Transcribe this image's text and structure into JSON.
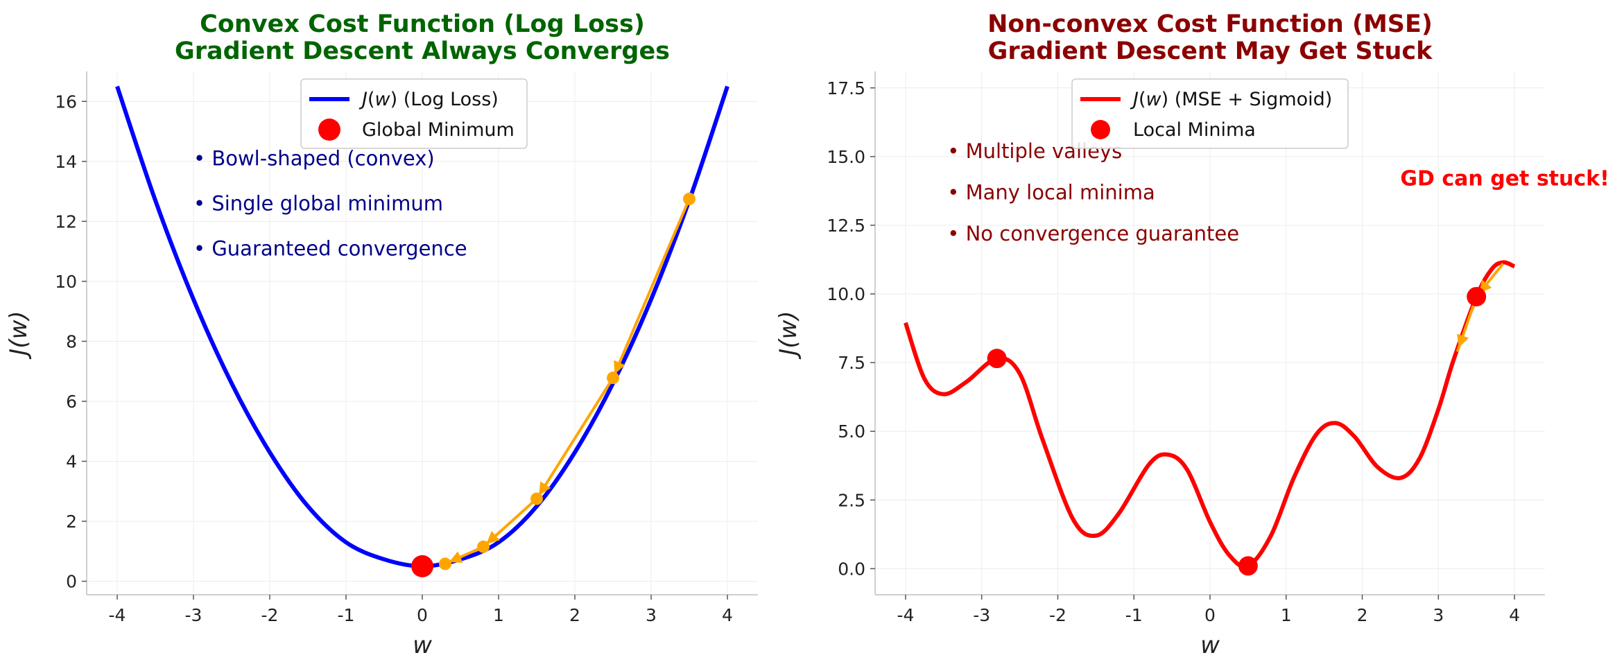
{
  "chart_data": [
    {
      "type": "line",
      "title": "Convex Cost Function (Log Loss)\nGradient Descent Always Converges",
      "title_color": "#006400",
      "xlabel": "w",
      "ylabel": "J(w)",
      "xlim": [
        -4.4,
        4.4
      ],
      "ylim": [
        -0.45,
        17.0
      ],
      "xticks": [
        -4,
        -3,
        -2,
        -1,
        0,
        1,
        2,
        3,
        4
      ],
      "yticks": [
        0,
        2,
        4,
        6,
        8,
        10,
        12,
        14,
        16
      ],
      "grid": true,
      "legend_placement": "top-center",
      "series": [
        {
          "name": "J(w) (Log Loss)",
          "color": "#0000ff",
          "x": [
            -4.0,
            -3.5,
            -3.0,
            -2.5,
            -2.0,
            -1.5,
            -1.0,
            -0.5,
            0.0,
            0.5,
            1.0,
            1.5,
            2.0,
            2.5,
            3.0,
            3.5,
            4.0
          ],
          "y": [
            16.5,
            12.7,
            9.4,
            6.6,
            4.3,
            2.5,
            1.3,
            0.73,
            0.5,
            0.73,
            1.3,
            2.5,
            4.3,
            6.6,
            9.4,
            12.7,
            16.5
          ]
        }
      ],
      "markers": [
        {
          "name": "Global Minimum",
          "color": "#ff0000",
          "points": [
            [
              0.0,
              0.5
            ]
          ]
        }
      ],
      "gd_path": {
        "color": "#ffa500",
        "points": [
          [
            3.5,
            12.75
          ],
          [
            2.5,
            6.78
          ],
          [
            1.5,
            2.75
          ],
          [
            0.8,
            1.15
          ],
          [
            0.3,
            0.58
          ]
        ]
      },
      "annotations": [
        {
          "text": "• Bowl-shaped (convex)",
          "x": -3.0,
          "y": 14.1,
          "color": "#00008b"
        },
        {
          "text": "• Single global minimum",
          "x": -3.0,
          "y": 12.6,
          "color": "#00008b"
        },
        {
          "text": "• Guaranteed convergence",
          "x": -3.0,
          "y": 11.1,
          "color": "#00008b"
        }
      ],
      "legend": [
        {
          "label_prefix": "J",
          "label_var": "w",
          "label_suffix": " (Log Loss)",
          "kind": "line",
          "color": "#0000ff"
        },
        {
          "label": "Global Minimum",
          "kind": "marker",
          "color": "#ff0000"
        }
      ]
    },
    {
      "type": "line",
      "title": "Non-convex Cost Function (MSE)\nGradient Descent May Get Stuck",
      "title_color": "#8b0000",
      "xlabel": "w",
      "ylabel": "J(w)",
      "xlim": [
        -4.4,
        4.4
      ],
      "ylim": [
        -0.95,
        18.1
      ],
      "xticks": [
        -4,
        -3,
        -2,
        -1,
        0,
        1,
        2,
        3,
        4
      ],
      "yticks": [
        0.0,
        2.5,
        5.0,
        7.5,
        10.0,
        12.5,
        15.0,
        17.5
      ],
      "grid": true,
      "legend_placement": "top-center",
      "series": [
        {
          "name": "J(w) (MSE + Sigmoid)",
          "color": "#ff0000",
          "x": [
            -4.0,
            -3.75,
            -3.5,
            -3.2,
            -2.8,
            -2.5,
            -2.2,
            -1.8,
            -1.5,
            -1.2,
            -0.8,
            -0.55,
            -0.3,
            0.0,
            0.25,
            0.5,
            0.8,
            1.1,
            1.4,
            1.65,
            1.9,
            2.2,
            2.5,
            2.75,
            3.0,
            3.2,
            3.5,
            3.7,
            3.85,
            4.0
          ],
          "y": [
            8.95,
            6.9,
            6.35,
            6.8,
            7.65,
            7.1,
            4.7,
            1.8,
            1.2,
            2.0,
            3.8,
            4.15,
            3.6,
            1.7,
            0.5,
            0.1,
            1.2,
            3.3,
            4.9,
            5.3,
            4.8,
            3.7,
            3.3,
            4.0,
            5.8,
            7.6,
            9.9,
            10.9,
            11.15,
            11.0
          ]
        }
      ],
      "markers": [
        {
          "name": "Local Minima",
          "color": "#ff0000",
          "points": [
            [
              -2.8,
              7.65
            ],
            [
              0.5,
              0.1
            ],
            [
              3.5,
              9.9
            ]
          ]
        }
      ],
      "gd_path": {
        "color": "#ffa500",
        "points": [
          [
            3.85,
            11.1
          ],
          [
            3.5,
            9.9
          ],
          [
            3.25,
            7.9
          ]
        ]
      },
      "annotations": [
        {
          "text": "• Multiple valleys",
          "x": -3.45,
          "y": 15.2,
          "color": "#8b0000"
        },
        {
          "text": "• Many local minima",
          "x": -3.45,
          "y": 13.7,
          "color": "#8b0000"
        },
        {
          "text": "• No convergence guarantee",
          "x": -3.45,
          "y": 12.2,
          "color": "#8b0000"
        },
        {
          "text": "GD can get stuck!",
          "x": 2.5,
          "y": 14.2,
          "color": "#ff0000",
          "bold": true
        }
      ],
      "legend": [
        {
          "label_prefix": "J",
          "label_var": "w",
          "label_suffix": " (MSE + Sigmoid)",
          "kind": "line",
          "color": "#ff0000"
        },
        {
          "label": "Local Minima",
          "kind": "marker",
          "color": "#ff0000"
        }
      ]
    }
  ]
}
